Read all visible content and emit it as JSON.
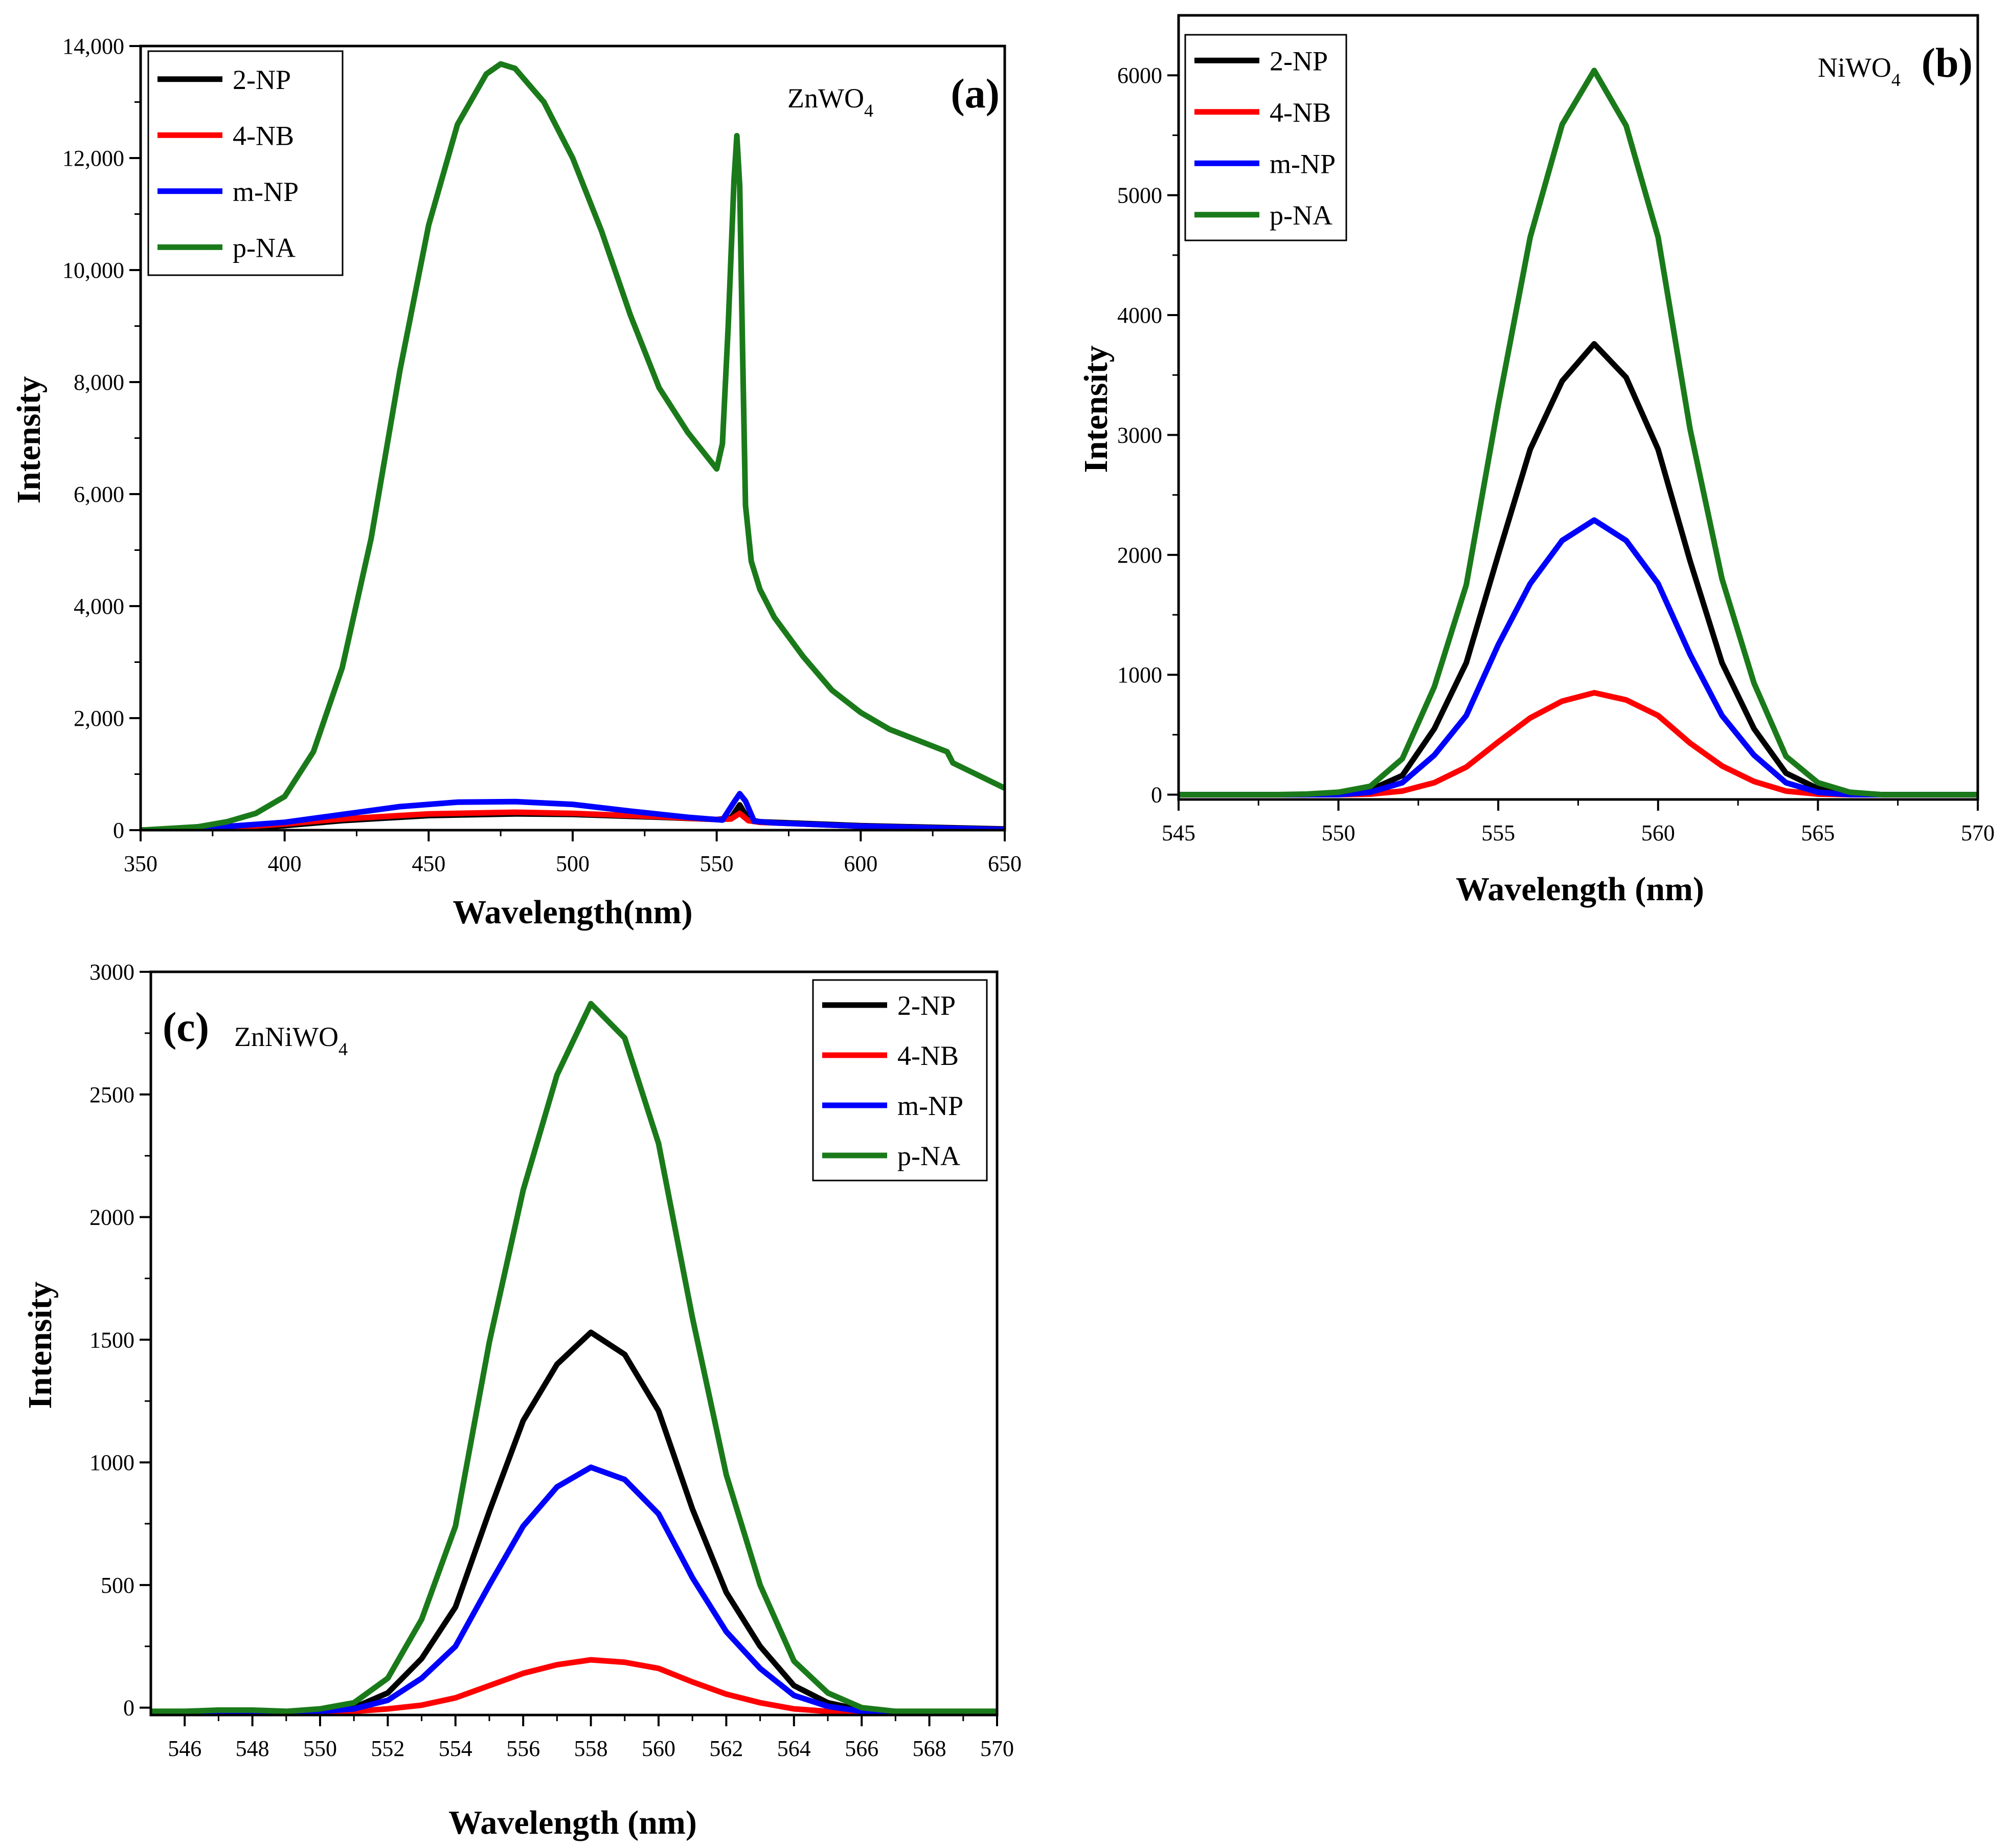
{
  "chart_data": [
    {
      "type": "line",
      "panel_label": "(a)",
      "compound": {
        "text": "ZnWO",
        "subscript": "4"
      },
      "xlabel": "Wavelength(nm)",
      "ylabel": "Intensity",
      "xlim": [
        350,
        650
      ],
      "ylim": [
        0,
        14000
      ],
      "xticks": [
        350,
        400,
        450,
        500,
        550,
        600,
        650
      ],
      "xtick_labels": [
        "350",
        "400",
        "450",
        "500",
        "550",
        "600",
        "650"
      ],
      "yticks": [
        0,
        2000,
        4000,
        6000,
        8000,
        10000,
        12000,
        14000
      ],
      "ytick_labels": [
        "0",
        "2,000",
        "4,000",
        "6,000",
        "8,000",
        "10,000",
        "12,000",
        "14,000"
      ],
      "legend": {
        "position": "top-left",
        "entries": [
          "2-NP",
          "4-NB",
          "m-NP",
          "p-NA"
        ]
      },
      "series": [
        {
          "name": "2-NP",
          "color": "#000000",
          "x": [
            350,
            380,
            400,
            420,
            450,
            480,
            500,
            530,
            550,
            555,
            558,
            561,
            565,
            600,
            650
          ],
          "y": [
            0,
            30,
            80,
            170,
            260,
            290,
            280,
            230,
            190,
            220,
            450,
            190,
            150,
            80,
            20
          ]
        },
        {
          "name": "4-NB",
          "color": "#ff0000",
          "x": [
            350,
            380,
            400,
            420,
            450,
            480,
            500,
            530,
            550,
            555,
            558,
            561,
            565,
            600,
            650
          ],
          "y": [
            0,
            40,
            110,
            200,
            290,
            320,
            300,
            240,
            190,
            200,
            300,
            170,
            140,
            70,
            10
          ]
        },
        {
          "name": "m-NP",
          "color": "#0000ff",
          "x": [
            350,
            370,
            400,
            420,
            440,
            460,
            480,
            500,
            520,
            540,
            552,
            556,
            558,
            560,
            563,
            570,
            600,
            650
          ],
          "y": [
            0,
            30,
            140,
            280,
            420,
            500,
            510,
            460,
            340,
            230,
            180,
            500,
            650,
            520,
            160,
            130,
            70,
            10
          ]
        },
        {
          "name": "p-NA",
          "color": "#1a7a1a",
          "x": [
            350,
            370,
            380,
            390,
            400,
            410,
            420,
            430,
            440,
            450,
            460,
            470,
            475,
            480,
            490,
            500,
            510,
            520,
            530,
            540,
            550,
            552,
            554,
            556,
            557,
            558,
            559,
            560,
            562,
            565,
            570,
            580,
            590,
            600,
            610,
            620,
            630,
            632,
            640,
            650
          ],
          "y": [
            0,
            60,
            150,
            300,
            600,
            1400,
            2900,
            5200,
            8200,
            10800,
            12600,
            13500,
            13680,
            13600,
            13000,
            12000,
            10700,
            9200,
            7900,
            7100,
            6450,
            6900,
            9000,
            11600,
            12400,
            11500,
            8500,
            5800,
            4800,
            4300,
            3800,
            3100,
            2500,
            2100,
            1800,
            1600,
            1400,
            1200,
            1000,
            750
          ]
        }
      ]
    },
    {
      "type": "line",
      "panel_label": "(b)",
      "compound": {
        "text": "NiWO",
        "subscript": "4"
      },
      "xlabel": "Wavelength (nm)",
      "ylabel": "Intensity",
      "xlim": [
        545,
        570
      ],
      "ylim": [
        -40,
        6500
      ],
      "xticks": [
        545,
        550,
        555,
        560,
        565,
        570
      ],
      "xtick_labels": [
        "545",
        "550",
        "555",
        "560",
        "565",
        "570"
      ],
      "yticks": [
        0,
        1000,
        2000,
        3000,
        4000,
        5000,
        6000
      ],
      "ytick_labels": [
        "0",
        "1000",
        "2000",
        "3000",
        "4000",
        "5000",
        "6000"
      ],
      "legend": {
        "position": "top-left",
        "entries": [
          "2-NP",
          "4-NB",
          "m-NP",
          "p-NA"
        ]
      },
      "series": [
        {
          "name": "2-NP",
          "color": "#000000",
          "x": [
            545,
            546,
            547,
            548,
            549,
            550,
            551,
            552,
            553,
            554,
            555,
            556,
            557,
            558,
            559,
            560,
            561,
            562,
            563,
            564,
            565,
            566,
            567,
            568,
            569,
            570
          ],
          "y": [
            0,
            0,
            0,
            0,
            0,
            10,
            40,
            160,
            550,
            1100,
            2000,
            2880,
            3450,
            3760,
            3480,
            2880,
            1950,
            1100,
            550,
            180,
            50,
            10,
            0,
            0,
            0,
            0
          ]
        },
        {
          "name": "4-NB",
          "color": "#ff0000",
          "x": [
            545,
            546,
            547,
            548,
            549,
            550,
            551,
            552,
            553,
            554,
            555,
            556,
            557,
            558,
            559,
            560,
            561,
            562,
            563,
            564,
            565,
            566,
            567,
            568,
            569,
            570
          ],
          "y": [
            0,
            0,
            0,
            0,
            0,
            0,
            5,
            30,
            100,
            230,
            440,
            640,
            780,
            850,
            790,
            660,
            430,
            240,
            110,
            30,
            5,
            0,
            0,
            0,
            0,
            0
          ]
        },
        {
          "name": "m-NP",
          "color": "#0000ff",
          "x": [
            545,
            546,
            547,
            548,
            549,
            550,
            551,
            552,
            553,
            554,
            555,
            556,
            557,
            558,
            559,
            560,
            561,
            562,
            563,
            564,
            565,
            566,
            567,
            568,
            569,
            570
          ],
          "y": [
            0,
            0,
            0,
            0,
            0,
            0,
            20,
            100,
            330,
            660,
            1250,
            1760,
            2120,
            2290,
            2120,
            1760,
            1170,
            660,
            330,
            100,
            20,
            0,
            0,
            0,
            0,
            0
          ]
        },
        {
          "name": "p-NA",
          "color": "#1a7a1a",
          "x": [
            545,
            546,
            547,
            548,
            549,
            550,
            551,
            552,
            553,
            554,
            555,
            556,
            557,
            558,
            559,
            560,
            561,
            562,
            563,
            564,
            565,
            566,
            567,
            568,
            569,
            570
          ],
          "y": [
            0,
            0,
            0,
            0,
            5,
            20,
            70,
            300,
            900,
            1750,
            3250,
            4650,
            5590,
            6040,
            5580,
            4650,
            3050,
            1800,
            930,
            320,
            100,
            20,
            0,
            0,
            0,
            0
          ]
        }
      ]
    },
    {
      "type": "line",
      "panel_label": "(c)",
      "compound": {
        "text": "ZnNiWO",
        "subscript": "4"
      },
      "xlabel": "Wavelength (nm)",
      "ylabel": "Intensity",
      "xlim": [
        545,
        570
      ],
      "ylim": [
        -30,
        3000
      ],
      "xticks": [
        546,
        548,
        550,
        552,
        554,
        556,
        558,
        560,
        562,
        564,
        566,
        568,
        570
      ],
      "xtick_labels": [
        "546",
        "548",
        "550",
        "552",
        "554",
        "556",
        "558",
        "560",
        "562",
        "564",
        "566",
        "568",
        "570"
      ],
      "yticks": [
        0,
        500,
        1000,
        1500,
        2000,
        2500,
        3000
      ],
      "ytick_labels": [
        "0",
        "500",
        "1000",
        "1500",
        "2000",
        "2500",
        "3000"
      ],
      "legend": {
        "position": "top-right",
        "entries": [
          "2-NP",
          "4-NB",
          "m-NP",
          "p-NA"
        ]
      },
      "series": [
        {
          "name": "2-NP",
          "color": "#000000",
          "x": [
            545,
            546,
            547,
            548,
            549,
            550,
            551,
            552,
            553,
            554,
            555,
            556,
            557,
            558,
            559,
            560,
            561,
            562,
            563,
            564,
            565,
            566,
            567,
            568,
            569,
            570
          ],
          "y": [
            -20,
            -20,
            -20,
            -20,
            -20,
            -15,
            0,
            60,
            200,
            410,
            800,
            1170,
            1400,
            1530,
            1440,
            1210,
            810,
            470,
            250,
            90,
            20,
            -10,
            -20,
            -20,
            -20,
            -20
          ]
        },
        {
          "name": "4-NB",
          "color": "#ff0000",
          "x": [
            545,
            546,
            547,
            548,
            549,
            550,
            551,
            552,
            553,
            554,
            555,
            556,
            557,
            558,
            559,
            560,
            561,
            562,
            563,
            564,
            565,
            566,
            567,
            568,
            569,
            570
          ],
          "y": [
            -20,
            -20,
            -20,
            -20,
            -20,
            -20,
            -15,
            -5,
            10,
            40,
            90,
            140,
            175,
            195,
            185,
            160,
            105,
            55,
            20,
            -5,
            -15,
            -20,
            -20,
            -20,
            -20,
            -20
          ]
        },
        {
          "name": "m-NP",
          "color": "#0000ff",
          "x": [
            545,
            546,
            547,
            548,
            549,
            550,
            551,
            552,
            553,
            554,
            555,
            556,
            557,
            558,
            559,
            560,
            561,
            562,
            563,
            564,
            565,
            566,
            567,
            568,
            569,
            570
          ],
          "y": [
            -20,
            -20,
            -20,
            -20,
            -20,
            -15,
            -5,
            30,
            120,
            250,
            500,
            740,
            900,
            980,
            930,
            790,
            530,
            310,
            160,
            50,
            5,
            -15,
            -20,
            -20,
            -20,
            -20
          ]
        },
        {
          "name": "p-NA",
          "color": "#1a7a1a",
          "x": [
            545,
            546,
            547,
            548,
            549,
            550,
            551,
            552,
            553,
            554,
            555,
            556,
            557,
            558,
            559,
            560,
            561,
            562,
            563,
            564,
            565,
            566,
            567,
            568,
            569,
            570
          ],
          "y": [
            -15,
            -15,
            -10,
            -10,
            -15,
            -5,
            20,
            120,
            360,
            740,
            1490,
            2110,
            2580,
            2870,
            2730,
            2300,
            1590,
            950,
            500,
            190,
            60,
            0,
            -15,
            -15,
            -15,
            -15
          ]
        }
      ]
    }
  ]
}
